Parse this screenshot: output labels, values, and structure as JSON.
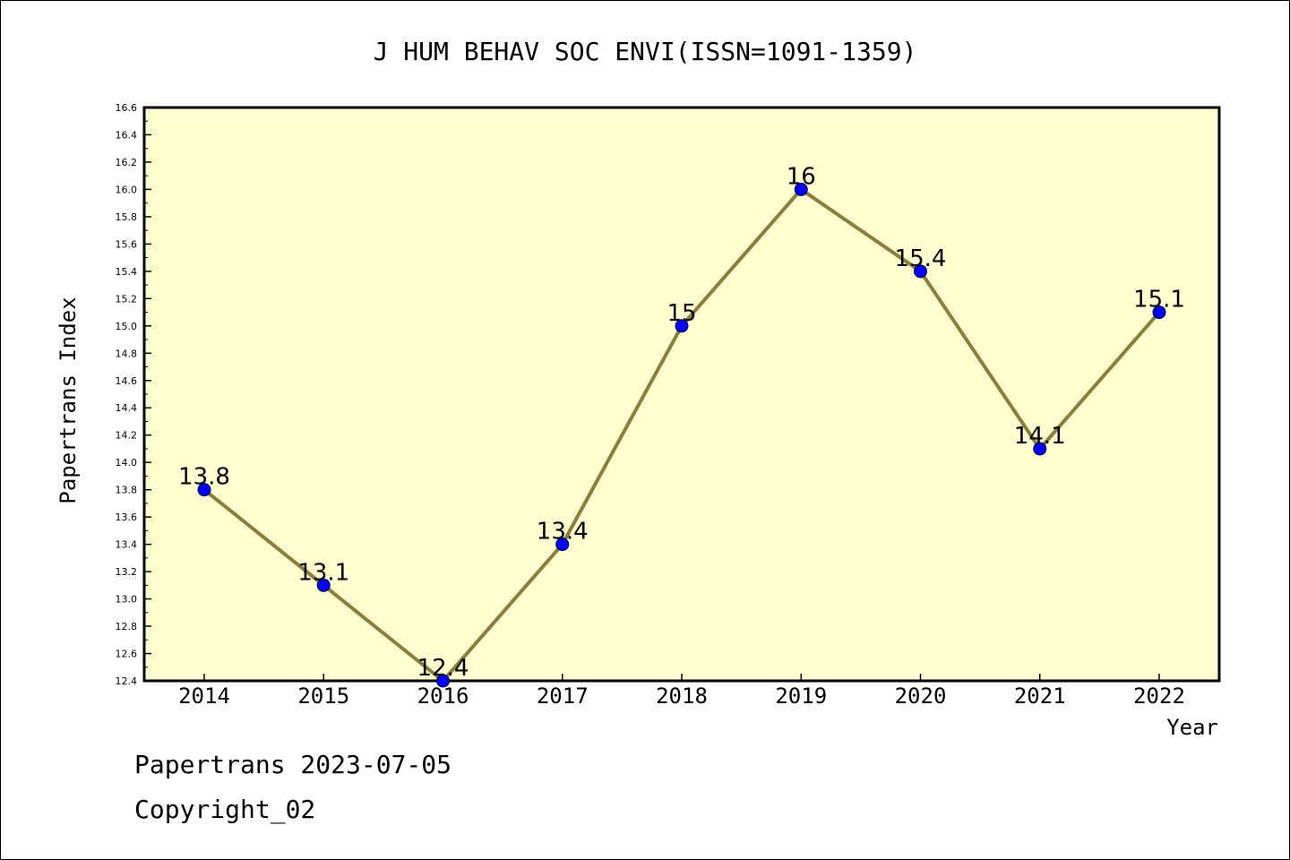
{
  "chart_data": {
    "type": "line",
    "title": "J HUM BEHAV SOC ENVI(ISSN=1091-1359)",
    "xlabel": "Year",
    "ylabel": "Papertrans Index",
    "categories": [
      "2014",
      "2015",
      "2016",
      "2017",
      "2018",
      "2019",
      "2020",
      "2021",
      "2022"
    ],
    "values": [
      13.8,
      13.1,
      12.4,
      13.4,
      15.0,
      16.0,
      15.4,
      14.1,
      15.1
    ],
    "data_labels": [
      "13.8",
      "13.1",
      "12.4",
      "13.4",
      "15",
      "16",
      "15.4",
      "14.1",
      "15.1"
    ],
    "ylim": [
      12.4,
      16.6
    ],
    "yticks": [
      "12.4",
      "12.6",
      "12.8",
      "13.0",
      "13.2",
      "13.4",
      "13.6",
      "13.8",
      "14.0",
      "14.2",
      "14.4",
      "14.6",
      "14.8",
      "15.0",
      "15.2",
      "15.4",
      "15.6",
      "15.8",
      "16.0",
      "16.2",
      "16.4",
      "16.6"
    ],
    "grid": false,
    "colors": {
      "plot_background": "#ffffd0",
      "line": "#8b7d3a",
      "marker": "#0000ff"
    }
  },
  "footer": {
    "line1": "Papertrans 2023-07-05",
    "line2": "Copyright_02"
  }
}
